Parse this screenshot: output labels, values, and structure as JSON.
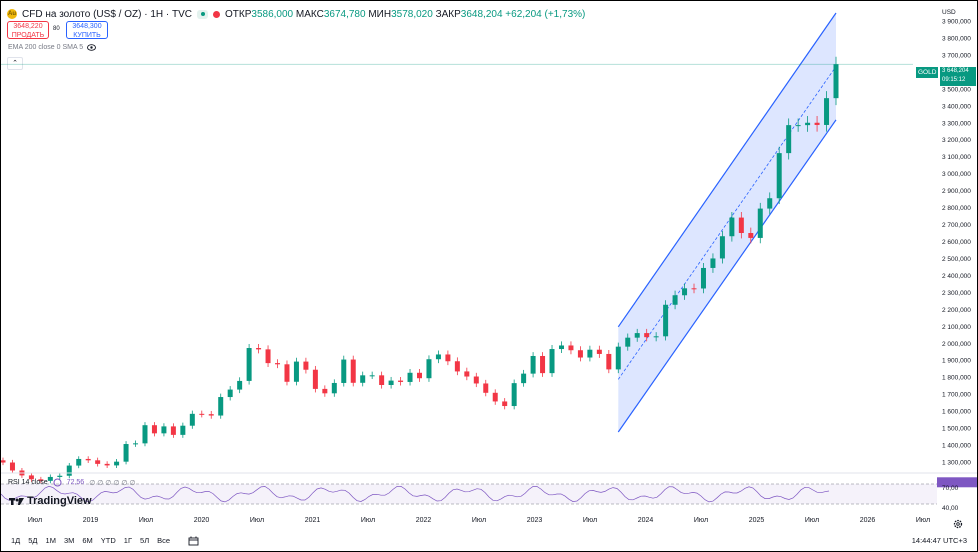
{
  "header": {
    "symbol": "CFD на золото (US$ / OZ) · 1Н · TVC",
    "logo_icon": "gold-coin-icon",
    "open_label": "ОТКР",
    "open": "3586,000",
    "high_label": "МАКС",
    "high": "3674,780",
    "low_label": "МИН",
    "low": "3578,020",
    "close_label": "ЗАКР",
    "close": "3648,204",
    "change": "+62,204 (+1,73%)"
  },
  "trade": {
    "sell_price": "3648,220",
    "sell_label": "ПРОДАТЬ",
    "spread": "80",
    "buy_price": "3648,300",
    "buy_label": "КУПИТЬ"
  },
  "indicators": {
    "ema": "EMA 200 close 0 SMA 5",
    "rsi_label": "RSI 14 close",
    "rsi_value": "72,56",
    "rsi_dots": "∅ ∅ ∅ ∅ ∅ ∅",
    "brand": "TradingView"
  },
  "price_axis": {
    "currency": "USD",
    "ticks": [
      "3 900,000",
      "3 800,000",
      "3 700,000",
      "3 600,000",
      "3 500,000",
      "3 400,000",
      "3 300,000",
      "3 200,000",
      "3 100,000",
      "3 000,000",
      "2 900,000",
      "2 800,000",
      "2 700,000",
      "2 600,000",
      "2 500,000",
      "2 400,000",
      "2 300,000",
      "2 200,000",
      "2 100,000",
      "2 000,000",
      "1 900,000",
      "1 800,000",
      "1 700,000",
      "1 600,000",
      "1 500,000",
      "1 400,000",
      "1 300,000"
    ],
    "current_symbol": "GOLD",
    "current_price": "3 648,204",
    "countdown": "09:15:12",
    "rsi_ticks": [
      "70,00",
      "40,00"
    ]
  },
  "time_axis": {
    "labels": [
      "Июл",
      "2019",
      "Июл",
      "2020",
      "Июл",
      "2021",
      "Июл",
      "2022",
      "Июл",
      "2023",
      "Июл",
      "2024",
      "Июл",
      "2025",
      "Июл",
      "2026",
      "Июл"
    ]
  },
  "bottom": {
    "ranges": [
      "1Д",
      "5Д",
      "1М",
      "3М",
      "6М",
      "YTD",
      "1Г",
      "5Л",
      "Все"
    ],
    "time": "14:44:47 UTC+3"
  },
  "colors": {
    "up": "#089981",
    "down": "#f23645",
    "channel": "#2962ff",
    "rsi": "#7e57c2"
  },
  "chart_data": {
    "type": "candlestick",
    "x_unit": "month",
    "ylim": [
      1250,
      3950
    ],
    "series": [
      {
        "date": "2018-05",
        "close": 1300
      },
      {
        "date": "2018-06",
        "close": 1253
      },
      {
        "date": "2018-07",
        "close": 1224
      },
      {
        "date": "2018-08",
        "close": 1201
      },
      {
        "date": "2018-09",
        "close": 1192
      },
      {
        "date": "2018-10",
        "close": 1215
      },
      {
        "date": "2018-11",
        "close": 1222
      },
      {
        "date": "2018-12",
        "close": 1282
      },
      {
        "date": "2019-01",
        "close": 1321
      },
      {
        "date": "2019-02",
        "close": 1313
      },
      {
        "date": "2019-03",
        "close": 1292
      },
      {
        "date": "2019-04",
        "close": 1283
      },
      {
        "date": "2019-05",
        "close": 1305
      },
      {
        "date": "2019-06",
        "close": 1409
      },
      {
        "date": "2019-07",
        "close": 1413
      },
      {
        "date": "2019-08",
        "close": 1520
      },
      {
        "date": "2019-09",
        "close": 1472
      },
      {
        "date": "2019-10",
        "close": 1513
      },
      {
        "date": "2019-11",
        "close": 1463
      },
      {
        "date": "2019-12",
        "close": 1517
      },
      {
        "date": "2020-01",
        "close": 1587
      },
      {
        "date": "2020-02",
        "close": 1585
      },
      {
        "date": "2020-03",
        "close": 1577
      },
      {
        "date": "2020-04",
        "close": 1686
      },
      {
        "date": "2020-05",
        "close": 1730
      },
      {
        "date": "2020-06",
        "close": 1781
      },
      {
        "date": "2020-07",
        "close": 1975
      },
      {
        "date": "2020-08",
        "close": 1967
      },
      {
        "date": "2020-09",
        "close": 1886
      },
      {
        "date": "2020-10",
        "close": 1879
      },
      {
        "date": "2020-11",
        "close": 1776
      },
      {
        "date": "2020-12",
        "close": 1895
      },
      {
        "date": "2021-01",
        "close": 1847
      },
      {
        "date": "2021-02",
        "close": 1734
      },
      {
        "date": "2021-03",
        "close": 1708
      },
      {
        "date": "2021-04",
        "close": 1769
      },
      {
        "date": "2021-05",
        "close": 1907
      },
      {
        "date": "2021-06",
        "close": 1770
      },
      {
        "date": "2021-07",
        "close": 1814
      },
      {
        "date": "2021-08",
        "close": 1814
      },
      {
        "date": "2021-09",
        "close": 1757
      },
      {
        "date": "2021-10",
        "close": 1783
      },
      {
        "date": "2021-11",
        "close": 1775
      },
      {
        "date": "2021-12",
        "close": 1829
      },
      {
        "date": "2022-01",
        "close": 1797
      },
      {
        "date": "2022-02",
        "close": 1909
      },
      {
        "date": "2022-03",
        "close": 1937
      },
      {
        "date": "2022-04",
        "close": 1897
      },
      {
        "date": "2022-05",
        "close": 1837
      },
      {
        "date": "2022-06",
        "close": 1807
      },
      {
        "date": "2022-07",
        "close": 1766
      },
      {
        "date": "2022-08",
        "close": 1711
      },
      {
        "date": "2022-09",
        "close": 1660
      },
      {
        "date": "2022-10",
        "close": 1633
      },
      {
        "date": "2022-11",
        "close": 1768
      },
      {
        "date": "2022-12",
        "close": 1824
      },
      {
        "date": "2023-01",
        "close": 1928
      },
      {
        "date": "2023-02",
        "close": 1827
      },
      {
        "date": "2023-03",
        "close": 1969
      },
      {
        "date": "2023-04",
        "close": 1990
      },
      {
        "date": "2023-05",
        "close": 1962
      },
      {
        "date": "2023-06",
        "close": 1919
      },
      {
        "date": "2023-07",
        "close": 1965
      },
      {
        "date": "2023-08",
        "close": 1940
      },
      {
        "date": "2023-09",
        "close": 1849
      },
      {
        "date": "2023-10",
        "close": 1983
      },
      {
        "date": "2023-11",
        "close": 2036
      },
      {
        "date": "2023-12",
        "close": 2063
      },
      {
        "date": "2024-01",
        "close": 2039
      },
      {
        "date": "2024-02",
        "close": 2044
      },
      {
        "date": "2024-03",
        "close": 2230
      },
      {
        "date": "2024-04",
        "close": 2286
      },
      {
        "date": "2024-05",
        "close": 2327
      },
      {
        "date": "2024-06",
        "close": 2326
      },
      {
        "date": "2024-07",
        "close": 2447
      },
      {
        "date": "2024-08",
        "close": 2503
      },
      {
        "date": "2024-09",
        "close": 2634
      },
      {
        "date": "2024-10",
        "close": 2744
      },
      {
        "date": "2024-11",
        "close": 2653
      },
      {
        "date": "2024-12",
        "close": 2624
      },
      {
        "date": "2025-01",
        "close": 2797
      },
      {
        "date": "2025-02",
        "close": 2858
      },
      {
        "date": "2025-03",
        "close": 3124
      },
      {
        "date": "2025-04",
        "close": 3289
      },
      {
        "date": "2025-05",
        "close": 3289
      },
      {
        "date": "2025-06",
        "close": 3303
      },
      {
        "date": "2025-07",
        "close": 3290
      },
      {
        "date": "2025-08",
        "close": 3448
      },
      {
        "date": "2025-09",
        "close": 3648
      }
    ],
    "channel": {
      "upper": [
        {
          "date": "2023-10",
          "value": 2100
        },
        {
          "date": "2025-09",
          "value": 3950
        }
      ],
      "lower": [
        {
          "date": "2023-10",
          "value": 1480
        },
        {
          "date": "2025-09",
          "value": 3320
        }
      ]
    },
    "rsi_last": 72.56
  }
}
